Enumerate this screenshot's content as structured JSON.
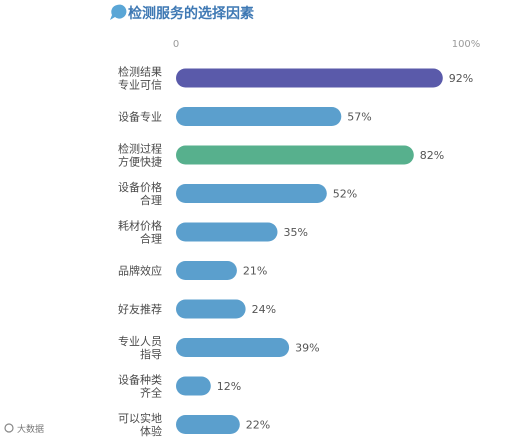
{
  "header": {
    "title": "检测服务的选择因素"
  },
  "axis": {
    "min_label": "0",
    "max_label": "100%"
  },
  "footer": {
    "source": "大数据"
  },
  "colors": {
    "title": "#3f79b4",
    "bar_default": "#5b9fcd",
    "bar_top": "#5a5aaa",
    "bar_highlight": "#57b08d"
  },
  "chart_data": {
    "type": "bar",
    "orientation": "horizontal",
    "title": "检测服务的选择因素",
    "xlim": [
      0,
      100
    ],
    "unit": "%",
    "categories": [
      [
        "检测结果",
        "专业可信"
      ],
      [
        "设备专业"
      ],
      [
        "检测过程",
        "方便快捷"
      ],
      [
        "设备价格",
        "合理"
      ],
      [
        "耗材价格",
        "合理"
      ],
      [
        "品牌效应"
      ],
      [
        "好友推荐"
      ],
      [
        "专业人员",
        "指导"
      ],
      [
        "设备种类",
        "齐全"
      ],
      [
        "可以实地",
        "体验"
      ]
    ],
    "values": [
      92,
      57,
      82,
      52,
      35,
      21,
      24,
      39,
      12,
      22
    ],
    "value_labels": [
      "92%",
      "57%",
      "82%",
      "52%",
      "35%",
      "21%",
      "24%",
      "39%",
      "12%",
      "22%"
    ],
    "bar_colors": [
      "#5a5aaa",
      "#5b9fcd",
      "#57b08d",
      "#5b9fcd",
      "#5b9fcd",
      "#5b9fcd",
      "#5b9fcd",
      "#5b9fcd",
      "#5b9fcd",
      "#5b9fcd"
    ],
    "grid": false,
    "legend": "none"
  }
}
